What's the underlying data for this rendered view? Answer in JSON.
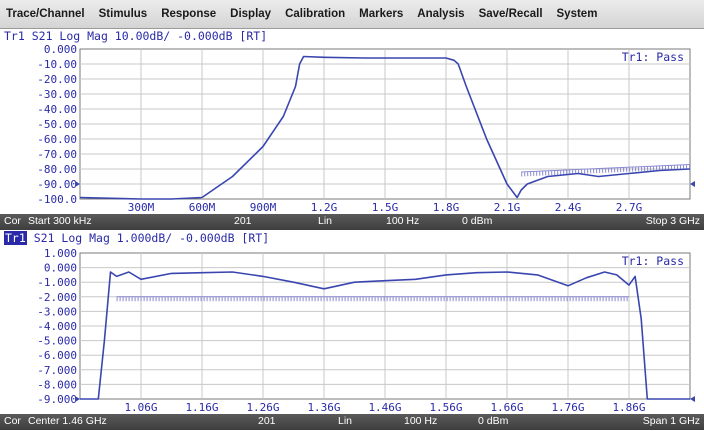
{
  "menu": [
    "Trace/Channel",
    "Stimulus",
    "Response",
    "Display",
    "Calibration",
    "Markers",
    "Analysis",
    "Save/Recall",
    "System"
  ],
  "panels": [
    {
      "trace_label": "Tr1",
      "trace_label_active": false,
      "header": "S21 Log Mag 10.00dB/ -0.000dB [RT]",
      "limit_status": "Tr1: Pass",
      "y_ticks": [
        "0.000",
        "-10.00",
        "-20.00",
        "-30.00",
        "-40.00",
        "-50.00",
        "-60.00",
        "-70.00",
        "-80.00",
        "-90.00",
        "-100.0"
      ],
      "x_ticks": [
        "300M",
        "600M",
        "900M",
        "1.2G",
        "1.5G",
        "1.8G",
        "2.1G",
        "2.4G",
        "2.7G"
      ],
      "status": {
        "cor": "Cor",
        "range": "Start 300 kHz",
        "points": "201",
        "sweep": "Lin",
        "ifbw": "100 Hz",
        "power": "0 dBm",
        "end": "Stop 3 GHz"
      }
    },
    {
      "trace_label": "Tr1",
      "trace_label_active": true,
      "header": "S21 Log Mag 1.000dB/ -0.000dB [RT]",
      "limit_status": "Tr1: Pass",
      "y_ticks": [
        "1.000",
        "0.000",
        "-1.000",
        "-2.000",
        "-3.000",
        "-4.000",
        "-5.000",
        "-6.000",
        "-7.000",
        "-8.000",
        "-9.000"
      ],
      "x_ticks": [
        "1.06G",
        "1.16G",
        "1.26G",
        "1.36G",
        "1.46G",
        "1.56G",
        "1.66G",
        "1.76G",
        "1.86G"
      ],
      "status": {
        "cor": "Cor",
        "range": "Center 1.46 GHz",
        "points": "201",
        "sweep": "Lin",
        "ifbw": "100 Hz",
        "power": "0 dBm",
        "end": "Span 1 GHz"
      }
    }
  ],
  "chart_data": [
    {
      "type": "line",
      "title": "S21 Log Mag 10.00dB/ -0.000dB [RT]",
      "xlabel": "",
      "ylabel": "",
      "xlim": [
        0.0003,
        3.0
      ],
      "ylim": [
        -100,
        0
      ],
      "grid": true,
      "series": [
        {
          "color": "#3a46b0",
          "x": [
            0.0003,
            0.3,
            0.45,
            0.6,
            0.75,
            0.9,
            1.0,
            1.06,
            1.08,
            1.1,
            1.2,
            1.4,
            1.6,
            1.8,
            1.84,
            1.86,
            1.9,
            2.0,
            2.1,
            2.15,
            2.17,
            2.2,
            2.3,
            2.45,
            2.55,
            2.7,
            2.85,
            3.0
          ],
          "y": [
            -99,
            -100,
            -100,
            -99,
            -85,
            -65,
            -45,
            -25,
            -10,
            -5,
            -5.5,
            -6,
            -6,
            -6,
            -7.5,
            -10,
            -25,
            -60,
            -90,
            -99,
            -94,
            -90,
            -85,
            -83,
            -85,
            -83,
            -81,
            -80
          ]
        }
      ],
      "limit_line": {
        "x": [
          2.17,
          3.0
        ],
        "y": [
          -82,
          -77
        ]
      }
    },
    {
      "type": "line",
      "title": "S21 Log Mag 1.000dB/ -0.000dB [RT]",
      "xlabel": "",
      "ylabel": "",
      "xlim": [
        0.96,
        1.96
      ],
      "ylim": [
        -9,
        1
      ],
      "grid": true,
      "series": [
        {
          "color": "#3a46b0",
          "x": [
            0.96,
            0.99,
            1.0,
            1.01,
            1.02,
            1.04,
            1.06,
            1.11,
            1.16,
            1.21,
            1.26,
            1.31,
            1.36,
            1.41,
            1.46,
            1.51,
            1.56,
            1.61,
            1.66,
            1.71,
            1.76,
            1.79,
            1.82,
            1.84,
            1.86,
            1.87,
            1.88,
            1.89,
            1.91,
            1.96
          ],
          "y": [
            -9.0,
            -9.0,
            -5.0,
            -0.3,
            -0.6,
            -0.3,
            -0.8,
            -0.4,
            -0.35,
            -0.3,
            -0.6,
            -1.0,
            -1.45,
            -1.0,
            -0.9,
            -0.8,
            -0.5,
            -0.35,
            -0.3,
            -0.5,
            -1.25,
            -0.7,
            -0.3,
            -0.5,
            -1.2,
            -0.6,
            -3.5,
            -9.0,
            -9.0,
            -9.0
          ]
        }
      ],
      "limit_line": {
        "x": [
          1.02,
          1.86
        ],
        "y": [
          -2.0,
          -2.0
        ]
      }
    }
  ]
}
